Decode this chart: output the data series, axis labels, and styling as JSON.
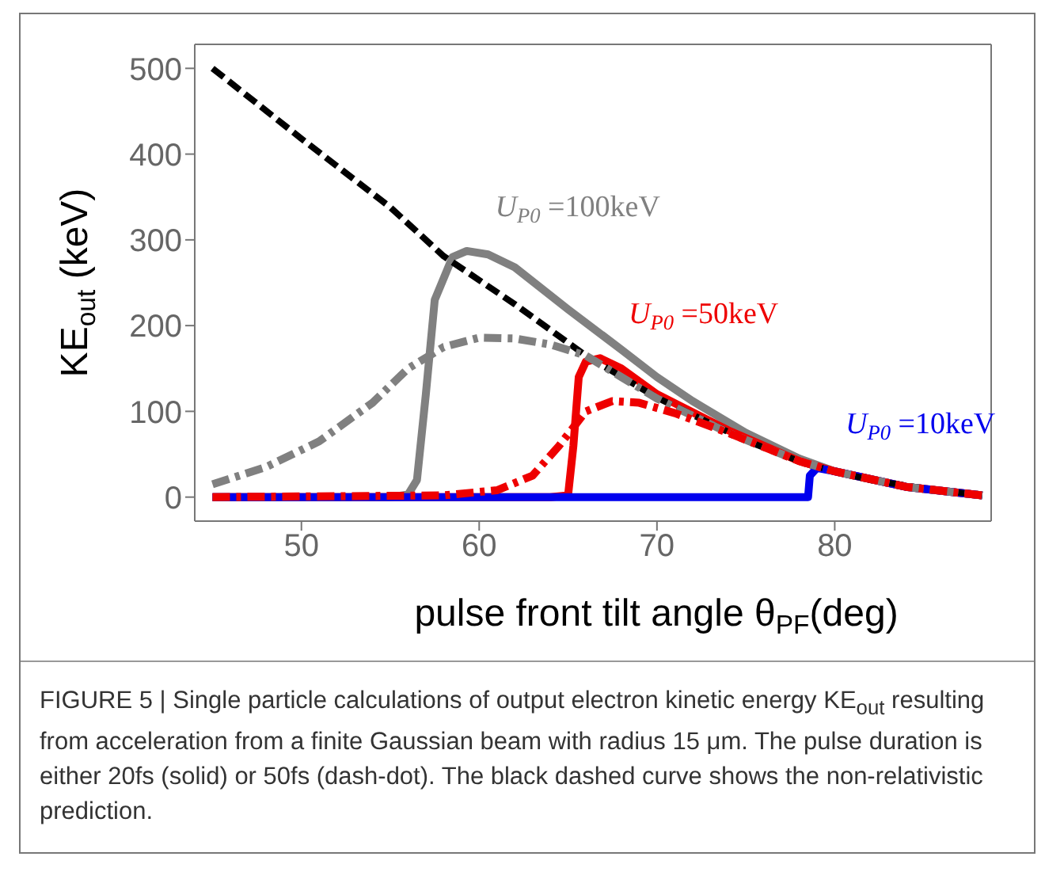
{
  "chart_data": {
    "type": "line",
    "xlabel": "pulse front tilt angle θ$_{PF}$(deg)",
    "ylabel": "KE$_{out}$ (keV)",
    "xlim": [
      44,
      88.8
    ],
    "ylim": [
      -28,
      528
    ],
    "xticks": [
      50,
      60,
      70,
      80
    ],
    "yticks": [
      0,
      100,
      200,
      300,
      400,
      500
    ],
    "grid": false,
    "series": [
      {
        "color": "#000000",
        "line_style": "dashed",
        "x": [
          45,
          50,
          55,
          58,
          62,
          66,
          70,
          75,
          78.5,
          82,
          85,
          88.3
        ],
        "values": [
          500,
          418,
          338,
          281,
          225,
          165,
          116,
          66,
          38,
          20,
          10,
          2
        ]
      },
      {
        "name": "U$_{P0}$ =100keV",
        "color": "#808080",
        "line_style": "solid",
        "x": [
          45,
          55,
          56,
          56.5,
          57,
          57.5,
          58.5,
          59.3,
          60.5,
          62,
          65,
          68,
          70,
          72,
          75,
          78,
          80,
          84,
          88.3
        ],
        "values": [
          0,
          0,
          3,
          20,
          120,
          230,
          280,
          287,
          283,
          268,
          219,
          172,
          140,
          112,
          75,
          45,
          30,
          12,
          2
        ]
      },
      {
        "color": "#808080",
        "line_style": "dashdot",
        "x": [
          45,
          48,
          51,
          54,
          56,
          58,
          60,
          62,
          64,
          66,
          68,
          70,
          74,
          78,
          80,
          84,
          88.3
        ],
        "values": [
          15,
          35,
          65,
          110,
          150,
          175,
          186,
          185,
          178,
          165,
          140,
          115,
          75,
          42,
          30,
          12,
          2
        ]
      },
      {
        "name": "U$_{P0}$ =50keV",
        "color": "#ee0000",
        "line_style": "solid",
        "x": [
          45,
          64,
          65,
          65.3,
          65.6,
          66,
          66.8,
          68,
          70,
          74,
          78,
          80,
          84,
          88.3
        ],
        "values": [
          0,
          0,
          2,
          60,
          140,
          158,
          162,
          150,
          120,
          78,
          42,
          30,
          12,
          2
        ]
      },
      {
        "color": "#ee0000",
        "line_style": "dashdot",
        "x": [
          45,
          58,
          61,
          63,
          64.5,
          66,
          67.5,
          69,
          71,
          74,
          78,
          80,
          84,
          88.3
        ],
        "values": [
          0,
          2,
          8,
          25,
          60,
          100,
          112,
          110,
          98,
          75,
          42,
          30,
          12,
          2
        ]
      },
      {
        "name": "U$_{P0}$ =10keV",
        "color": "#0000ee",
        "line_style": "solid",
        "x": [
          45,
          78.5,
          78.6,
          79,
          80,
          84,
          88.3
        ],
        "values": [
          0,
          0,
          25,
          34,
          30,
          12,
          2
        ]
      }
    ],
    "annotations": [
      "FIGURE 5 | Single particle calculations of output electron kinetic energy KE$_{out}$ resulting from acceleration from a finite Gaussian beam with radius 15 μm. The pulse duration is either 20fs (solid) or 50fs (dash-dot). The black dashed curve shows the non-relativistic prediction."
    ]
  }
}
